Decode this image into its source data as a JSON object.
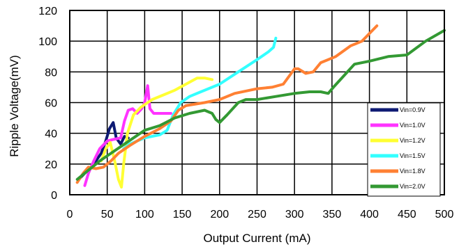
{
  "chart_data": {
    "type": "line",
    "title": "",
    "xlabel": "Output Current (mA)",
    "ylabel": "Ripple Voltage(mV)",
    "xlim": [
      0,
      500
    ],
    "ylim": [
      0,
      120
    ],
    "xticks": [
      "0",
      "50",
      "100",
      "150",
      "200",
      "250",
      "300",
      "350",
      "400",
      "450",
      "500"
    ],
    "yticks": [
      "0",
      "20",
      "40",
      "60",
      "80",
      "100",
      "120"
    ],
    "grid": true,
    "legend_position": "bottom-right",
    "series": [
      {
        "name": "Vin=0.9V",
        "color": "#0d1a73",
        "points": [
          [
            12,
            10
          ],
          [
            22,
            15
          ],
          [
            32,
            20
          ],
          [
            42,
            27
          ],
          [
            48,
            35
          ],
          [
            53,
            43
          ],
          [
            58,
            47
          ],
          [
            62,
            37
          ],
          [
            68,
            33
          ],
          [
            73,
            38
          ],
          [
            78,
            37
          ]
        ]
      },
      {
        "name": "Vin=1.0V",
        "color": "#ff33ff",
        "points": [
          [
            20,
            6
          ],
          [
            25,
            14
          ],
          [
            32,
            22
          ],
          [
            40,
            30
          ],
          [
            50,
            35
          ],
          [
            58,
            36
          ],
          [
            68,
            37
          ],
          [
            73,
            48
          ],
          [
            78,
            55
          ],
          [
            84,
            56
          ],
          [
            90,
            53
          ],
          [
            96,
            56
          ],
          [
            100,
            60
          ],
          [
            104,
            71
          ],
          [
            107,
            56
          ],
          [
            112,
            53
          ],
          [
            120,
            53
          ],
          [
            135,
            53
          ]
        ]
      },
      {
        "name": "Vin=1.2V",
        "color": "#ffff33",
        "points": [
          [
            42,
            22
          ],
          [
            48,
            30
          ],
          [
            54,
            34
          ],
          [
            60,
            22
          ],
          [
            65,
            10
          ],
          [
            69,
            5
          ],
          [
            72,
            20
          ],
          [
            77,
            40
          ],
          [
            85,
            52
          ],
          [
            95,
            57
          ],
          [
            110,
            62
          ],
          [
            125,
            65
          ],
          [
            140,
            68
          ],
          [
            155,
            72
          ],
          [
            170,
            76
          ],
          [
            180,
            76
          ],
          [
            190,
            75
          ]
        ]
      },
      {
        "name": "Vin=1.5V",
        "color": "#33ffff",
        "points": [
          [
            72,
            30
          ],
          [
            80,
            33
          ],
          [
            90,
            35
          ],
          [
            100,
            37
          ],
          [
            110,
            38
          ],
          [
            120,
            39
          ],
          [
            130,
            42
          ],
          [
            138,
            52
          ],
          [
            148,
            60
          ],
          [
            160,
            64
          ],
          [
            175,
            67
          ],
          [
            200,
            72
          ],
          [
            225,
            80
          ],
          [
            250,
            88
          ],
          [
            265,
            93
          ],
          [
            272,
            96
          ],
          [
            275,
            102
          ]
        ]
      },
      {
        "name": "Vin=1.8V",
        "color": "#ff8033",
        "points": [
          [
            10,
            8
          ],
          [
            18,
            14
          ],
          [
            25,
            18
          ],
          [
            35,
            17
          ],
          [
            45,
            18
          ],
          [
            55,
            22
          ],
          [
            65,
            27
          ],
          [
            80,
            32
          ],
          [
            100,
            38
          ],
          [
            120,
            43
          ],
          [
            135,
            48
          ],
          [
            145,
            55
          ],
          [
            155,
            58
          ],
          [
            180,
            60
          ],
          [
            200,
            62
          ],
          [
            220,
            66
          ],
          [
            250,
            69
          ],
          [
            270,
            70
          ],
          [
            285,
            72
          ],
          [
            300,
            82
          ],
          [
            305,
            82
          ],
          [
            315,
            79
          ],
          [
            325,
            80
          ],
          [
            335,
            86
          ],
          [
            355,
            90
          ],
          [
            375,
            97
          ],
          [
            390,
            100
          ],
          [
            400,
            105
          ],
          [
            410,
            110
          ]
        ]
      },
      {
        "name": "Vin=2.0V",
        "color": "#339933",
        "points": [
          [
            10,
            10
          ],
          [
            25,
            16
          ],
          [
            40,
            22
          ],
          [
            55,
            27
          ],
          [
            70,
            32
          ],
          [
            85,
            37
          ],
          [
            100,
            42
          ],
          [
            120,
            45
          ],
          [
            140,
            50
          ],
          [
            160,
            53
          ],
          [
            180,
            55
          ],
          [
            190,
            53
          ],
          [
            195,
            49
          ],
          [
            200,
            47
          ],
          [
            210,
            52
          ],
          [
            225,
            60
          ],
          [
            235,
            62
          ],
          [
            250,
            62
          ],
          [
            275,
            64
          ],
          [
            300,
            66
          ],
          [
            320,
            67
          ],
          [
            335,
            67
          ],
          [
            345,
            66
          ],
          [
            352,
            70
          ],
          [
            365,
            77
          ],
          [
            380,
            85
          ],
          [
            400,
            87
          ],
          [
            425,
            90
          ],
          [
            450,
            91
          ],
          [
            475,
            100
          ],
          [
            500,
            107
          ]
        ]
      }
    ]
  }
}
